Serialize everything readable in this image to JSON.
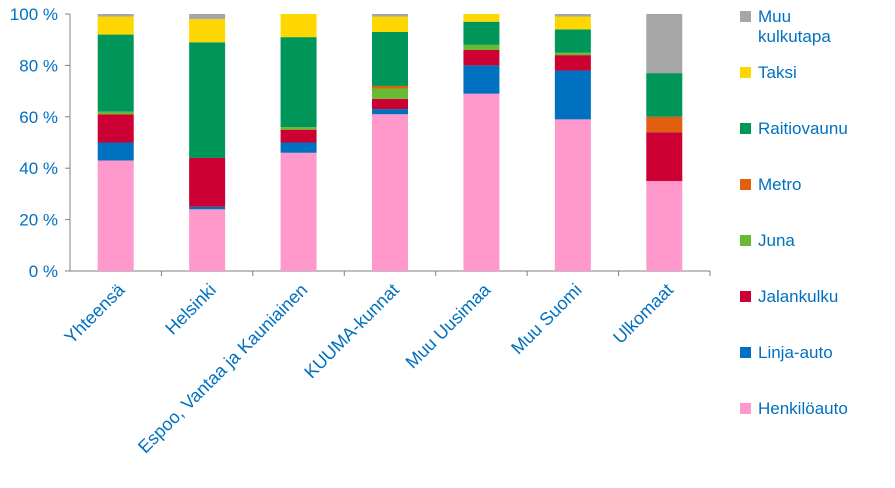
{
  "chart_data": {
    "type": "bar",
    "stacked": true,
    "title": "",
    "xlabel": "",
    "ylabel": "",
    "ylim": [
      0,
      100
    ],
    "yticks": [
      "0 %",
      "20 %",
      "40 %",
      "60 %",
      "80 %",
      "100 %"
    ],
    "ytick_values": [
      0,
      20,
      40,
      60,
      80,
      100
    ],
    "categories": [
      "Yhteensä",
      "Helsinki",
      "Espoo, Vantaa ja Kauniainen",
      "KUUMA-kunnat",
      "Muu Uusimaa",
      "Muu Suomi",
      "Ulkomaat"
    ],
    "legend_position": "right",
    "series": [
      {
        "name": "Henkilöauto",
        "color": "#ff99cc",
        "values": [
          43,
          24,
          46,
          61,
          69,
          59,
          35
        ]
      },
      {
        "name": "Linja-auto",
        "color": "#0070c0",
        "values": [
          7,
          1,
          4,
          2,
          11,
          19,
          0
        ]
      },
      {
        "name": "Jalankulku",
        "color": "#cc0033",
        "values": [
          11,
          19,
          5,
          4,
          6,
          6,
          19
        ]
      },
      {
        "name": "Juna",
        "color": "#66bb33",
        "values": [
          1,
          0,
          1,
          4,
          2,
          1,
          0
        ]
      },
      {
        "name": "Metro",
        "color": "#e06010",
        "values": [
          0,
          0,
          0,
          1,
          0,
          0,
          6
        ]
      },
      {
        "name": "Raitiovaunu",
        "color": "#00965a",
        "values": [
          30,
          45,
          35,
          21,
          9,
          9,
          17
        ]
      },
      {
        "name": "Taksi",
        "color": "#ffd700",
        "values": [
          7,
          9,
          9,
          6,
          3,
          5,
          0
        ]
      },
      {
        "name": "Muu kulkutapa",
        "color": "#a6a6a6",
        "values": [
          1,
          2,
          0,
          1,
          0,
          1,
          23
        ]
      }
    ],
    "legend_order": [
      "Muu kulkutapa",
      "Taksi",
      "Raitiovaunu",
      "Metro",
      "Juna",
      "Jalankulku",
      "Linja-auto",
      "Henkilöauto"
    ],
    "legend_lines": {
      "Muu kulkutapa": [
        "Muu",
        "kulkutapa"
      ]
    }
  },
  "colors": {
    "axis_text": "#0070c0",
    "axis_line": "#808080"
  }
}
